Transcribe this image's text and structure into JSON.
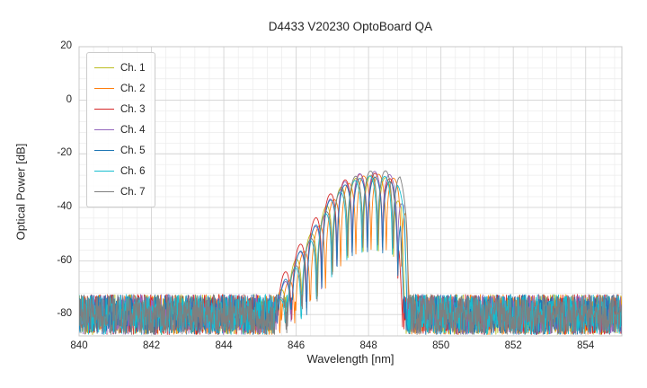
{
  "figure": {
    "background": "#ffffff"
  },
  "chart_data": {
    "type": "line",
    "title": "D4433 V20230 OptoBoard QA",
    "xlabel": "Wavelength [nm]",
    "ylabel": "Optical Power [dB]",
    "xlim": [
      840,
      855
    ],
    "ylim": [
      -88,
      20
    ],
    "xticks": [
      840,
      842,
      844,
      846,
      848,
      850,
      852,
      854
    ],
    "yticks": [
      20,
      0,
      -20,
      -40,
      -60,
      -80
    ],
    "x_minor_step": 0.4,
    "y_minor_step": 4,
    "grid": true,
    "grid_major_color": "#d4d4d4",
    "grid_minor_color": "#ebebeb",
    "axes_border_color": "#c8c8c8",
    "legend_position": "upper left",
    "noise_floor": {
      "mean_db": -80,
      "amplitude_db": 7.5,
      "points_per_nm": 100
    },
    "signal": {
      "description": "VCSEL multimode emission peak, noise floor elsewhere",
      "envelope_points": [
        [
          845.35,
          -78
        ],
        [
          845.75,
          -66
        ],
        [
          846.1,
          -57
        ],
        [
          846.5,
          -48
        ],
        [
          846.9,
          -38
        ],
        [
          847.3,
          -31.5
        ],
        [
          847.7,
          -28.5
        ],
        [
          848.1,
          -27.5
        ],
        [
          848.45,
          -28
        ],
        [
          848.75,
          -30
        ],
        [
          848.95,
          -40
        ],
        [
          849.05,
          -78
        ]
      ],
      "mode_center_nm": 848.1,
      "mode_spacing_nm": 0.42,
      "notch_floor": 0.04,
      "signal_range_nm": [
        845.3,
        849.1
      ]
    },
    "series": [
      {
        "name": "Ch. 1",
        "color": "#bcbd22",
        "shift": -0.04,
        "phase": 0.0,
        "vadj": -0.5,
        "seed": 101
      },
      {
        "name": "Ch. 2",
        "color": "#ff7f0e",
        "shift": 0.08,
        "phase": 0.1,
        "vadj": 0.0,
        "seed": 202
      },
      {
        "name": "Ch. 3",
        "color": "#d62728",
        "shift": -0.12,
        "phase": 0.2,
        "vadj": 0.5,
        "seed": 303
      },
      {
        "name": "Ch. 4",
        "color": "#9467bd",
        "shift": 0.02,
        "phase": 0.05,
        "vadj": 1.0,
        "seed": 404
      },
      {
        "name": "Ch. 5",
        "color": "#1f77b4",
        "shift": -0.07,
        "phase": 0.15,
        "vadj": -1.0,
        "seed": 505
      },
      {
        "name": "Ch. 6",
        "color": "#17becf",
        "shift": 0.05,
        "phase": 0.3,
        "vadj": -0.5,
        "seed": 606
      },
      {
        "name": "Ch. 7",
        "color": "#7f7f7f",
        "shift": 0.12,
        "phase": 0.25,
        "vadj": 1.5,
        "seed": 707
      }
    ]
  }
}
